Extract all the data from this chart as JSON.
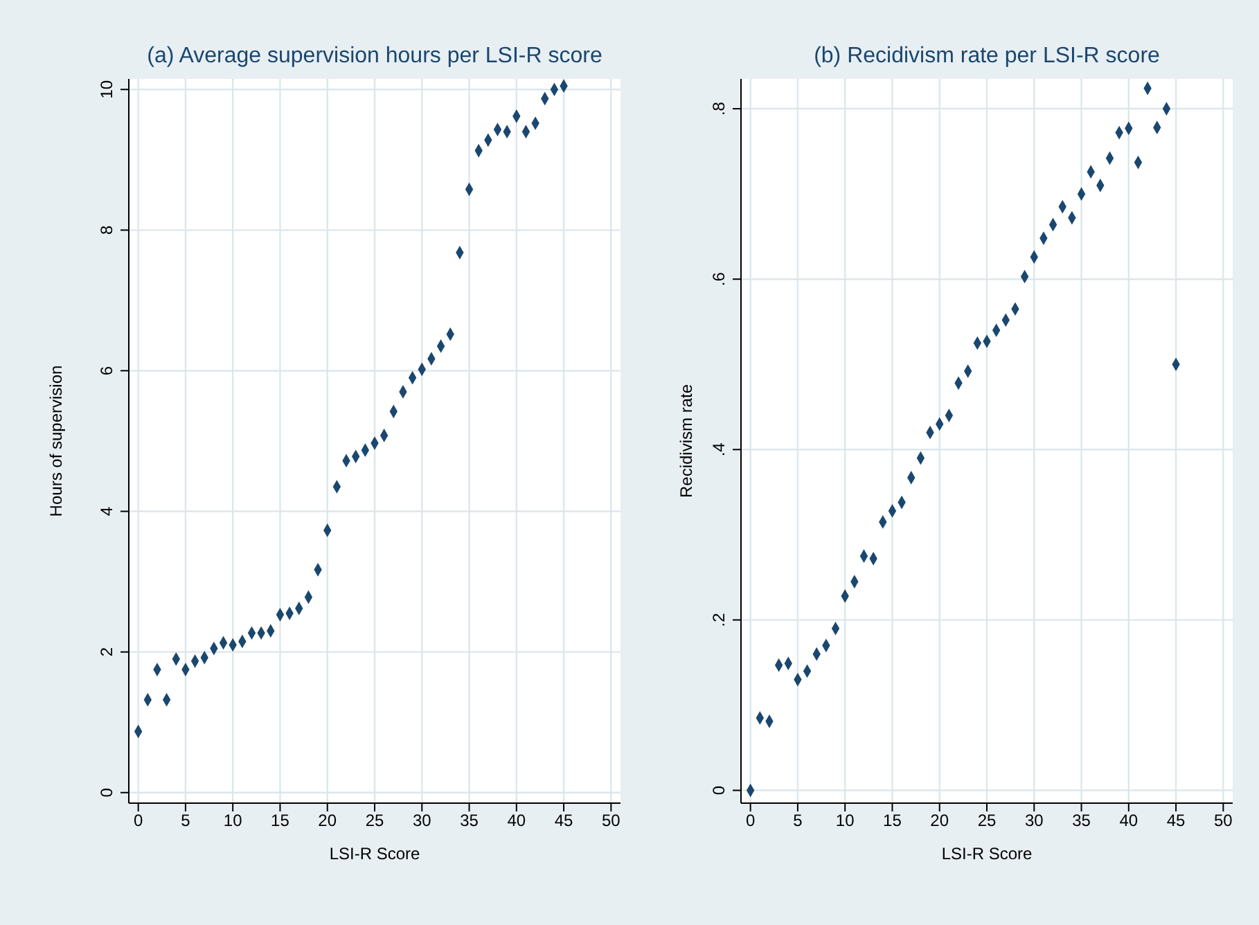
{
  "chart_data": [
    {
      "type": "scatter",
      "title": "(a) Average supervision hours per LSI-R score",
      "xlabel": "LSI-R Score",
      "ylabel": "Hours of supervision",
      "color": "#1a476f",
      "marker": "diamond",
      "grid": true,
      "x": [
        0,
        1,
        2,
        3,
        4,
        5,
        6,
        7,
        8,
        9,
        10,
        11,
        12,
        13,
        14,
        15,
        16,
        17,
        18,
        19,
        20,
        21,
        22,
        23,
        24,
        25,
        26,
        27,
        28,
        29,
        30,
        31,
        32,
        33,
        34,
        35,
        36,
        37,
        38,
        39,
        40,
        41,
        42,
        43,
        44,
        45
      ],
      "values": [
        0.87,
        1.32,
        1.75,
        1.32,
        1.9,
        1.75,
        1.87,
        1.92,
        2.05,
        2.13,
        2.1,
        2.15,
        2.27,
        2.27,
        2.3,
        2.53,
        2.55,
        2.62,
        2.78,
        3.17,
        3.73,
        4.35,
        4.72,
        4.78,
        4.87,
        4.97,
        5.08,
        5.42,
        5.7,
        5.9,
        6.02,
        6.17,
        6.35,
        6.52,
        7.68,
        8.58,
        9.13,
        9.28,
        9.43,
        9.4,
        9.62,
        9.4,
        9.52,
        9.87,
        10.0,
        10.05
      ],
      "xlim": [
        -1,
        51
      ],
      "xticks": [
        0,
        5,
        10,
        15,
        20,
        25,
        30,
        35,
        40,
        45,
        50
      ],
      "ylim": [
        -0.15,
        10.15
      ],
      "yticks": [
        0,
        2,
        4,
        6,
        8,
        10
      ]
    },
    {
      "type": "scatter",
      "title": "(b) Recidivism rate per LSI-R score",
      "xlabel": "LSI-R Score",
      "ylabel": "Recidivism rate",
      "color": "#1a476f",
      "marker": "diamond",
      "grid": true,
      "x": [
        0,
        1,
        2,
        3,
        4,
        5,
        6,
        7,
        8,
        9,
        10,
        11,
        12,
        13,
        14,
        15,
        16,
        17,
        18,
        19,
        20,
        21,
        22,
        23,
        24,
        25,
        26,
        27,
        28,
        29,
        30,
        31,
        32,
        33,
        34,
        35,
        36,
        37,
        38,
        39,
        40,
        41,
        42,
        43,
        44,
        45
      ],
      "values": [
        0,
        0.085,
        0.081,
        0.147,
        0.149,
        0.13,
        0.14,
        0.16,
        0.17,
        0.19,
        0.228,
        0.245,
        0.275,
        0.272,
        0.315,
        0.328,
        0.338,
        0.367,
        0.39,
        0.42,
        0.43,
        0.44,
        0.478,
        0.492,
        0.525,
        0.527,
        0.54,
        0.552,
        0.565,
        0.603,
        0.626,
        0.648,
        0.664,
        0.685,
        0.672,
        0.7,
        0.726,
        0.71,
        0.742,
        0.772,
        0.777,
        0.737,
        0.824,
        0.778,
        0.8,
        0.5
      ],
      "xlim": [
        -1,
        51
      ],
      "xticks": [
        0,
        5,
        10,
        15,
        20,
        25,
        30,
        35,
        40,
        45,
        50
      ],
      "ylim": [
        -0.015,
        0.835
      ],
      "yticks": [
        0,
        {
          "value": 0.2,
          "label": ".2"
        },
        {
          "value": 0.4,
          "label": ".4"
        },
        {
          "value": 0.6,
          "label": ".6"
        },
        {
          "value": 0.8,
          "label": ".8"
        }
      ]
    }
  ]
}
